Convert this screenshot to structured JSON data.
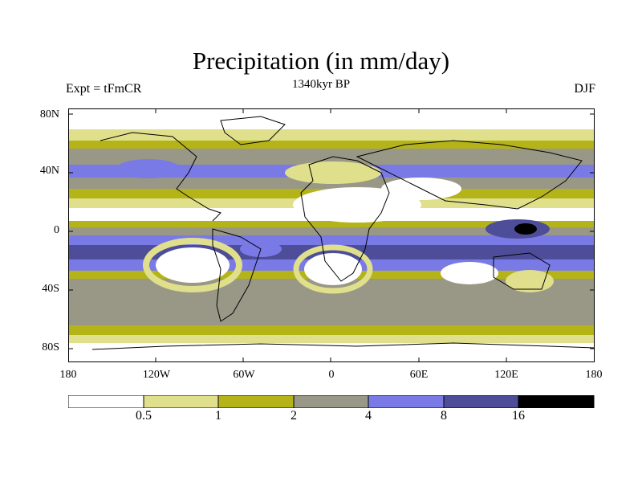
{
  "header": {
    "title": "Precipitation (in mm/day)",
    "subtitle": "1340kyr BP",
    "experiment": "Expt = tFmCR",
    "season": "DJF"
  },
  "axes": {
    "lat_labels": [
      "80N",
      "40N",
      "0",
      "40S",
      "80S"
    ],
    "lon_labels": [
      "180",
      "120W",
      "60W",
      "0",
      "60E",
      "120E",
      "180"
    ]
  },
  "colorbar": {
    "levels": [
      "0.5",
      "1",
      "2",
      "4",
      "8",
      "16"
    ],
    "colors": [
      "#ffffff",
      "#e0e08c",
      "#b4b419",
      "#999887",
      "#7a7ae6",
      "#4d4d99",
      "#000000"
    ]
  }
}
